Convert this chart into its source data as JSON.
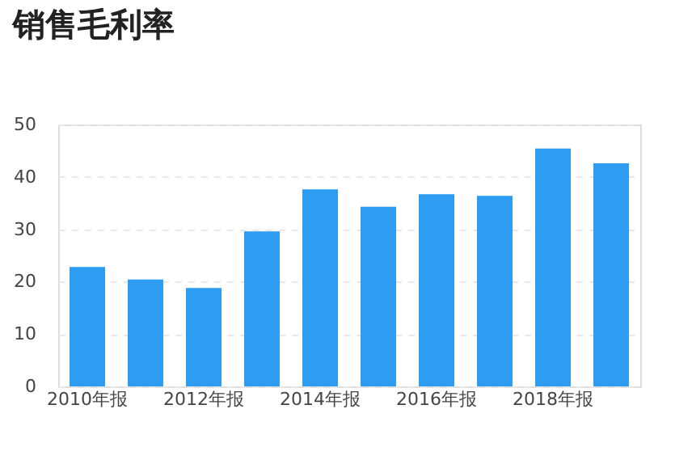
{
  "chart_data": {
    "type": "bar",
    "title": "销售毛利率",
    "categories": [
      "2010年报",
      null,
      "2012年报",
      null,
      "2014年报",
      null,
      "2016年报",
      null,
      "2018年报",
      null
    ],
    "values": [
      22.8,
      20.4,
      18.8,
      29.6,
      37.6,
      34.3,
      36.7,
      36.4,
      45.4,
      42.6
    ],
    "color": "#2e9cf0",
    "ylim": [
      0,
      50
    ],
    "yticks": [
      0,
      10,
      20,
      30,
      40,
      50
    ],
    "grid": "y"
  }
}
